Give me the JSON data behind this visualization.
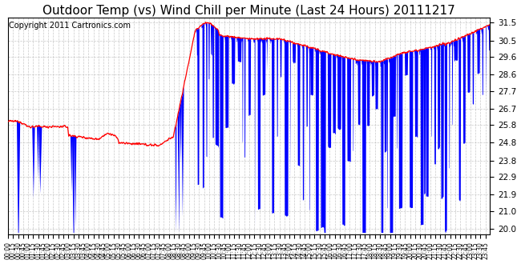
{
  "title": "Outdoor Temp (vs) Wind Chill per Minute (Last 24 Hours) 20111217",
  "copyright": "Copyright 2011 Cartronics.com",
  "yticks": [
    20.0,
    21.0,
    21.9,
    22.9,
    23.8,
    24.8,
    25.8,
    26.7,
    27.7,
    28.6,
    29.6,
    30.5,
    31.5
  ],
  "ylim": [
    19.7,
    31.8
  ],
  "background_color": "#ffffff",
  "plot_bg_color": "#ffffff",
  "grid_color": "#bbbbbb",
  "outer_temp_color": "#ff0000",
  "wind_chill_color": "#0000ff",
  "title_fontsize": 11,
  "copyright_fontsize": 7
}
